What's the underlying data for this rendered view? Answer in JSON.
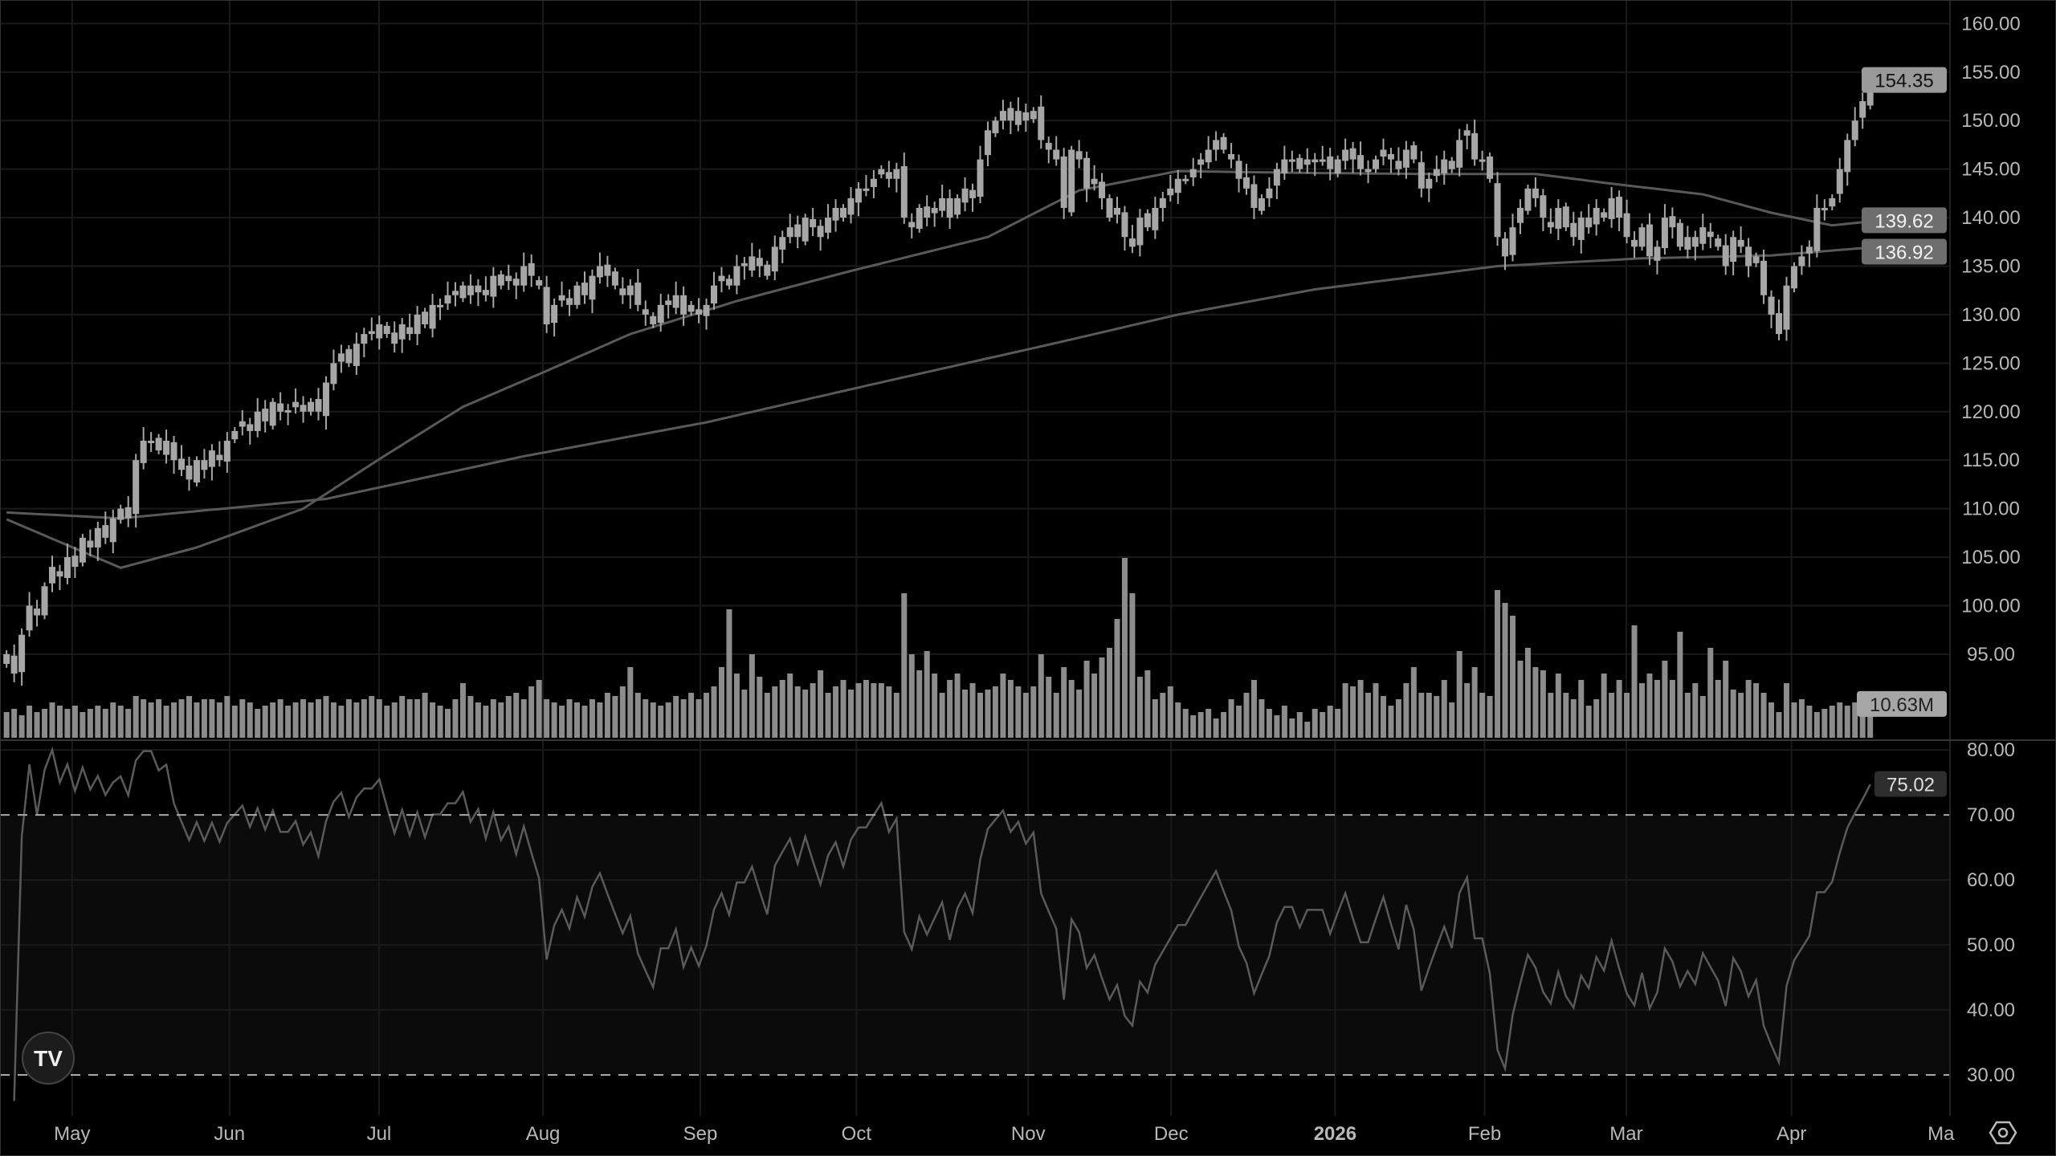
{
  "chart_data": {
    "type": "candlestick",
    "title": "",
    "x_tick_labels": [
      "May",
      "Jun",
      "Jul",
      "Aug",
      "Sep",
      "Oct",
      "Nov",
      "Dec",
      "2026",
      "Feb",
      "Mar",
      "Apr",
      "Ma"
    ],
    "price_axis": {
      "ylim": [
        90,
        162
      ],
      "tick_labels": [
        "160.00",
        "155.00",
        "150.00",
        "145.00",
        "140.00",
        "135.00",
        "130.00",
        "125.00",
        "120.00",
        "115.00",
        "110.00",
        "105.00",
        "100.00",
        "95.00"
      ]
    },
    "closes": [
      95,
      93,
      97,
      100,
      99,
      102,
      104,
      103,
      105,
      104,
      107,
      106,
      108,
      107,
      109,
      110,
      109,
      115,
      117,
      117,
      116,
      117,
      115,
      114,
      113,
      115,
      114,
      116,
      115,
      117,
      118,
      119,
      118,
      120,
      119,
      121,
      120,
      120,
      121,
      120,
      121,
      120,
      123,
      125,
      126,
      125,
      127,
      128,
      128,
      129,
      128,
      127,
      129,
      128,
      130,
      129,
      131,
      131,
      132,
      132,
      133,
      132,
      133,
      132,
      134,
      133,
      134,
      133,
      135,
      134,
      133,
      129,
      131,
      132,
      131,
      133,
      132,
      134,
      135,
      134,
      133,
      132,
      133,
      131,
      130,
      129,
      131,
      131,
      132,
      130,
      131,
      130,
      131,
      133,
      134,
      133,
      135,
      135,
      136,
      135,
      134,
      137,
      138,
      139,
      138,
      140,
      139,
      138,
      140,
      141,
      140,
      142,
      143,
      143,
      144,
      145,
      144,
      145,
      140,
      139,
      141,
      140,
      141,
      142,
      140,
      142,
      143,
      142,
      146,
      149,
      150,
      151,
      150,
      151,
      150,
      151,
      148,
      147,
      146,
      141,
      147,
      146,
      143,
      144,
      142,
      140,
      141,
      138,
      137,
      140,
      139,
      141,
      142,
      143,
      144,
      144,
      145,
      146,
      147,
      148,
      147,
      146,
      144,
      143,
      141,
      142,
      143,
      145,
      146,
      146,
      145,
      146,
      146,
      146,
      145,
      146,
      147,
      146,
      145,
      145,
      146,
      147,
      146,
      145,
      147,
      146,
      143,
      144,
      145,
      146,
      145,
      148,
      149,
      146,
      146,
      144,
      138,
      136,
      139,
      141,
      143,
      142,
      140,
      139,
      141,
      139,
      138,
      140,
      139,
      141,
      140,
      142,
      140,
      138,
      137,
      139,
      136,
      137,
      140,
      139,
      137,
      138,
      137,
      139,
      138,
      137,
      135,
      138,
      137,
      135,
      136,
      132,
      130,
      128,
      133,
      135,
      136,
      137,
      141,
      141,
      142,
      145,
      148,
      150,
      152,
      154.35
    ],
    "volumes_millions": [
      8,
      9,
      7,
      10,
      8,
      9,
      11,
      10,
      9,
      10,
      8,
      9,
      10,
      9,
      11,
      10,
      9,
      13,
      12,
      11,
      12,
      10,
      11,
      12,
      13,
      11,
      12,
      12,
      11,
      13,
      10,
      12,
      11,
      9,
      10,
      11,
      12,
      10,
      11,
      12,
      11,
      12,
      13,
      11,
      10,
      12,
      11,
      12,
      13,
      12,
      10,
      11,
      13,
      12,
      12,
      14,
      11,
      10,
      9,
      12,
      17,
      13,
      11,
      10,
      12,
      11,
      13,
      14,
      12,
      16,
      18,
      12,
      11,
      10,
      12,
      11,
      10,
      12,
      11,
      14,
      13,
      16,
      22,
      14,
      12,
      11,
      10,
      11,
      13,
      12,
      14,
      12,
      14,
      16,
      22,
      40,
      20,
      15,
      26,
      19,
      14,
      16,
      18,
      20,
      16,
      15,
      17,
      21,
      14,
      16,
      18,
      15,
      17,
      18,
      17,
      17,
      16,
      14,
      45,
      26,
      21,
      27,
      20,
      14,
      18,
      20,
      15,
      17,
      14,
      15,
      16,
      20,
      18,
      16,
      14,
      16,
      26,
      19,
      14,
      22,
      18,
      15,
      24,
      20,
      25,
      28,
      37,
      56,
      45,
      19,
      21,
      12,
      14,
      16,
      11,
      9,
      7,
      8,
      9,
      6,
      8,
      12,
      10,
      14,
      18,
      12,
      9,
      7,
      10,
      6,
      8,
      5,
      9,
      8,
      10,
      9,
      17,
      16,
      18,
      14,
      17,
      13,
      10,
      12,
      17,
      22,
      14,
      14,
      13,
      18,
      11,
      27,
      17,
      22,
      14,
      13,
      46,
      42,
      38,
      24,
      28,
      22,
      21,
      14,
      20,
      14,
      12,
      18,
      10,
      12,
      20,
      14,
      18,
      14,
      35,
      17,
      20,
      18,
      24,
      18,
      33,
      14,
      17,
      13,
      28,
      18,
      24,
      15,
      14,
      18,
      17,
      14,
      11,
      8,
      17,
      11,
      12,
      10,
      8,
      9,
      10,
      11,
      10,
      11,
      11,
      10.63
    ],
    "moving_averages": [
      {
        "points": [
          [
            0,
            108.9
          ],
          [
            15,
            103.9
          ],
          [
            25,
            106
          ],
          [
            39,
            110
          ],
          [
            49,
            115.1
          ],
          [
            60,
            120.5
          ],
          [
            71,
            124.2
          ],
          [
            82,
            128
          ],
          [
            96,
            131.4
          ],
          [
            111,
            134.5
          ],
          [
            129,
            138
          ],
          [
            141,
            142.8
          ],
          [
            154,
            144.8
          ],
          [
            162,
            144.7
          ],
          [
            172,
            144.6
          ],
          [
            186,
            144.5
          ],
          [
            201,
            144.5
          ],
          [
            211,
            143.5
          ],
          [
            223,
            142.4
          ],
          [
            232,
            140.5
          ],
          [
            240,
            139.2
          ],
          [
            245,
            139.62
          ]
        ]
      },
      {
        "points": [
          [
            0,
            109.6
          ],
          [
            15,
            109
          ],
          [
            42,
            111
          ],
          [
            68,
            115.4
          ],
          [
            92,
            118.9
          ],
          [
            116,
            123.2
          ],
          [
            137,
            126.9
          ],
          [
            154,
            130
          ],
          [
            172,
            132.6
          ],
          [
            196,
            135
          ],
          [
            215,
            135.8
          ],
          [
            232,
            136.1
          ],
          [
            245,
            136.92
          ]
        ]
      }
    ],
    "rsi": {
      "ylim": [
        25,
        82
      ],
      "tick_labels": [
        "80.00",
        "70.00",
        "60.00",
        "50.00",
        "40.00",
        "30.00"
      ],
      "overbought": 70,
      "oversold": 30,
      "period": 14
    },
    "last_price_label": "154.35",
    "ma_labels": [
      "139.62",
      "136.92"
    ],
    "volume_label": "10.63M",
    "rsi_label": "75.02",
    "grid": true
  },
  "colors": {
    "background": "#000000",
    "candle": "#a6a6a6",
    "grid": "#1a1a1a",
    "ma": "#595959",
    "volume": "#8c8c8c",
    "rsi": "#5a5a5a",
    "rsi_band": "#0b0b0b"
  },
  "icons": {
    "logo": "tradingview-logo",
    "settings": "settings-hex-icon"
  }
}
